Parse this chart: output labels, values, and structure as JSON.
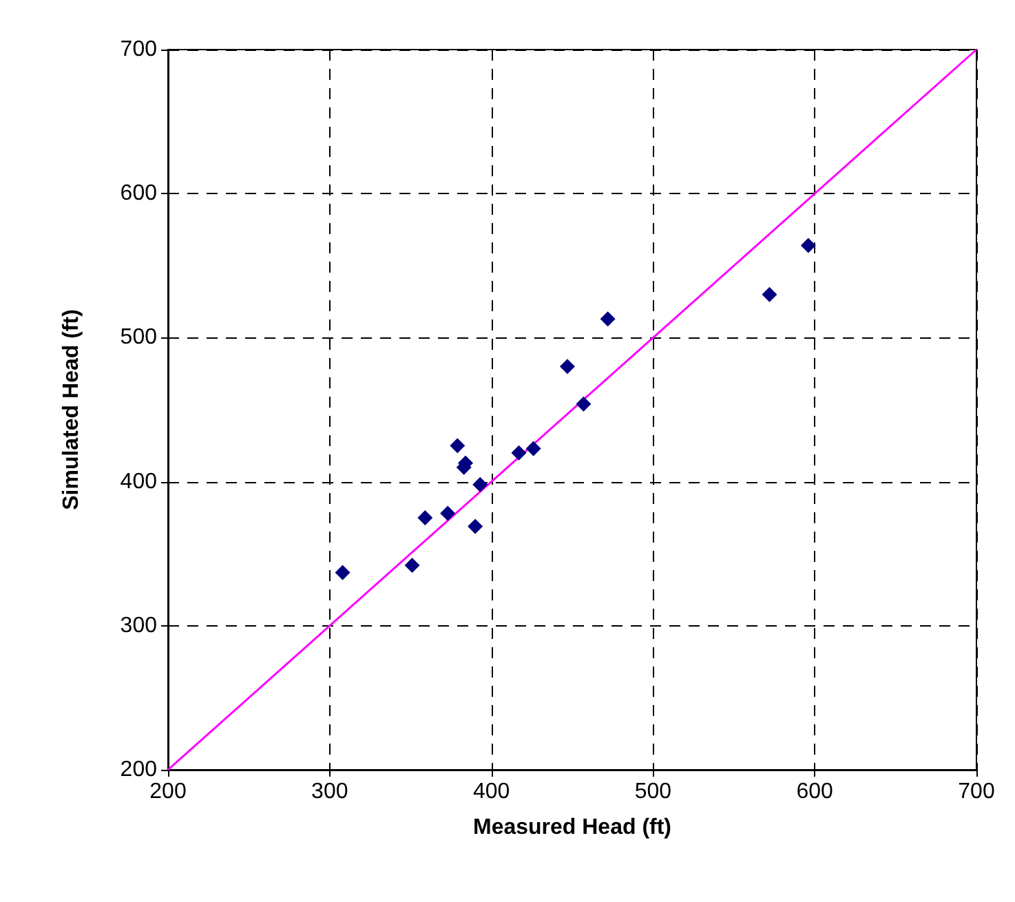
{
  "chart_data": {
    "type": "scatter",
    "xlabel": "Measured Head (ft)",
    "ylabel": "Simulated Head (ft)",
    "x": [
      308,
      351,
      359,
      373,
      390,
      393,
      379,
      383,
      384,
      417,
      426,
      447,
      457,
      472,
      572,
      596
    ],
    "series": [
      {
        "color": "#000080",
        "marker": "diamond",
        "values": [
          337,
          342,
          375,
          378,
          369,
          398,
          425,
          410,
          413,
          420,
          423,
          480,
          454,
          513,
          530,
          564
        ]
      },
      {
        "type": "line",
        "color": "#ff00ff",
        "marker": "none",
        "line_style": "solid",
        "x": [
          200,
          700
        ],
        "values": [
          200,
          700
        ]
      }
    ],
    "xlim": [
      200,
      700
    ],
    "ylim": [
      200,
      700
    ],
    "xticks": [
      200,
      300,
      400,
      500,
      600,
      700
    ],
    "yticks": [
      200,
      300,
      400,
      500,
      600,
      700
    ],
    "grid": true
  }
}
